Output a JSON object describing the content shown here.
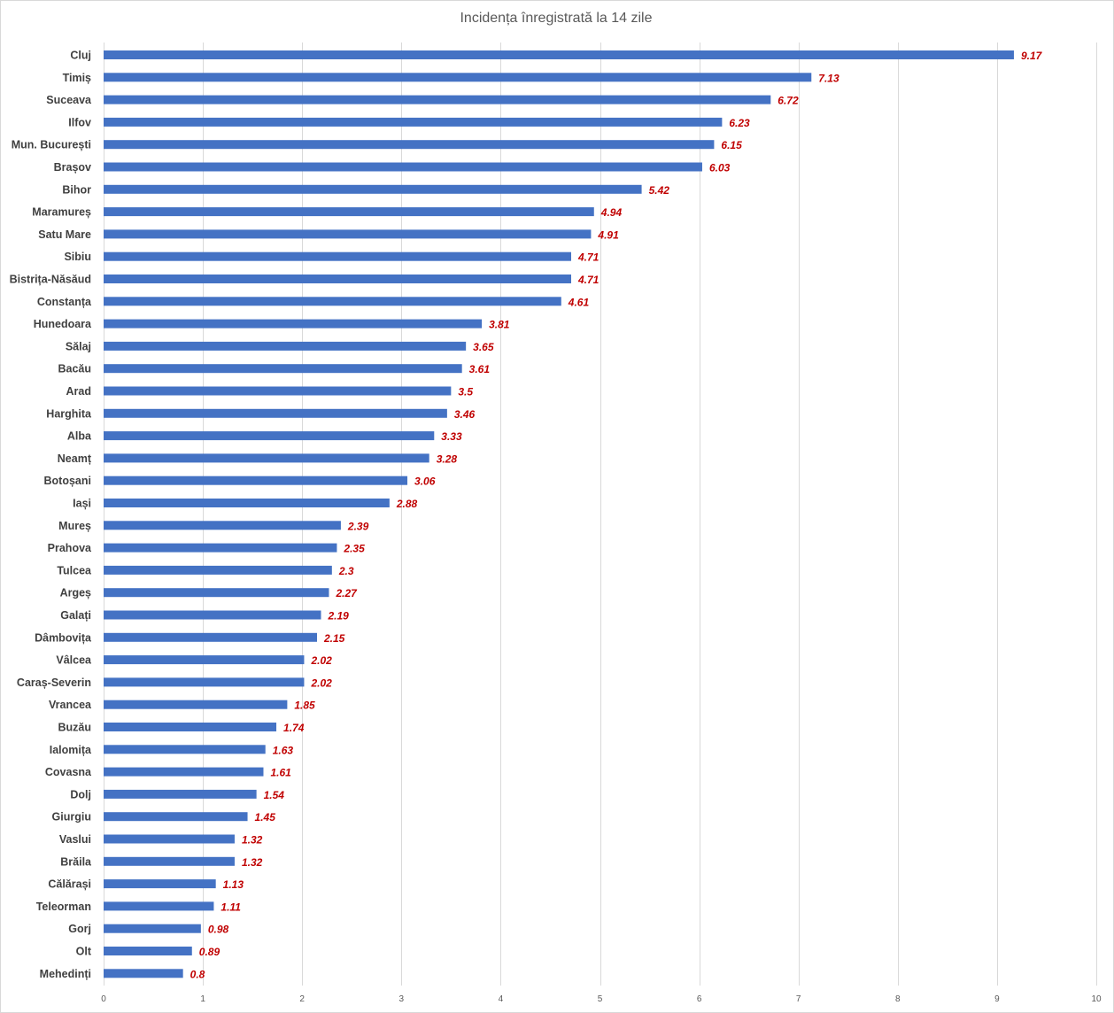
{
  "chart_data": {
    "type": "bar",
    "orientation": "horizontal",
    "title": "Incidența înregistrată la 14 zile",
    "categories": [
      "Cluj",
      "Timiș",
      "Suceava",
      "Ilfov",
      "Mun. București",
      "Brașov",
      "Bihor",
      "Maramureș",
      "Satu Mare",
      "Sibiu",
      "Bistrița-Năsăud",
      "Constanța",
      "Hunedoara",
      "Sălaj",
      "Bacău",
      "Arad",
      "Harghita",
      "Alba",
      "Neamț",
      "Botoșani",
      "Iași",
      "Mureș",
      "Prahova",
      "Tulcea",
      "Argeș",
      "Galați",
      "Dâmbovița",
      "Vâlcea",
      "Caraș-Severin",
      "Vrancea",
      "Buzău",
      "Ialomița",
      "Covasna",
      "Dolj",
      "Giurgiu",
      "Vaslui",
      "Brăila",
      "Călărași",
      "Teleorman",
      "Gorj",
      "Olt",
      "Mehedinți"
    ],
    "values": [
      9.17,
      7.13,
      6.72,
      6.23,
      6.15,
      6.03,
      5.42,
      4.94,
      4.91,
      4.71,
      4.71,
      4.61,
      3.81,
      3.65,
      3.61,
      3.5,
      3.46,
      3.33,
      3.28,
      3.06,
      2.88,
      2.39,
      2.35,
      2.3,
      2.27,
      2.19,
      2.15,
      2.02,
      2.02,
      1.85,
      1.74,
      1.63,
      1.61,
      1.54,
      1.45,
      1.32,
      1.32,
      1.13,
      1.11,
      0.98,
      0.89,
      0.8
    ],
    "value_labels": [
      "9.17",
      "7.13",
      "6.72",
      "6.23",
      "6.15",
      "6.03",
      "5.42",
      "4.94",
      "4.91",
      "4.71",
      "4.71",
      "4.61",
      "3.81",
      "3.65",
      "3.61",
      "3.5",
      "3.46",
      "3.33",
      "3.28",
      "3.06",
      "2.88",
      "2.39",
      "2.35",
      "2.3",
      "2.27",
      "2.19",
      "2.15",
      "2.02",
      "2.02",
      "1.85",
      "1.74",
      "1.63",
      "1.61",
      "1.54",
      "1.45",
      "1.32",
      "1.32",
      "1.13",
      "1.11",
      "0.98",
      "0.89",
      "0.8"
    ],
    "xlim": [
      0,
      10
    ],
    "x_ticks": [
      0,
      1,
      2,
      3,
      4,
      5,
      6,
      7,
      8,
      9,
      10
    ],
    "xlabel": "",
    "ylabel": "",
    "grid": "vertical",
    "legend": "none",
    "colors": {
      "bar": "#4472c4",
      "value_label": "#c00000",
      "gridline": "#d9d9d9",
      "category_label": "#404040",
      "tick_label": "#595959"
    }
  }
}
